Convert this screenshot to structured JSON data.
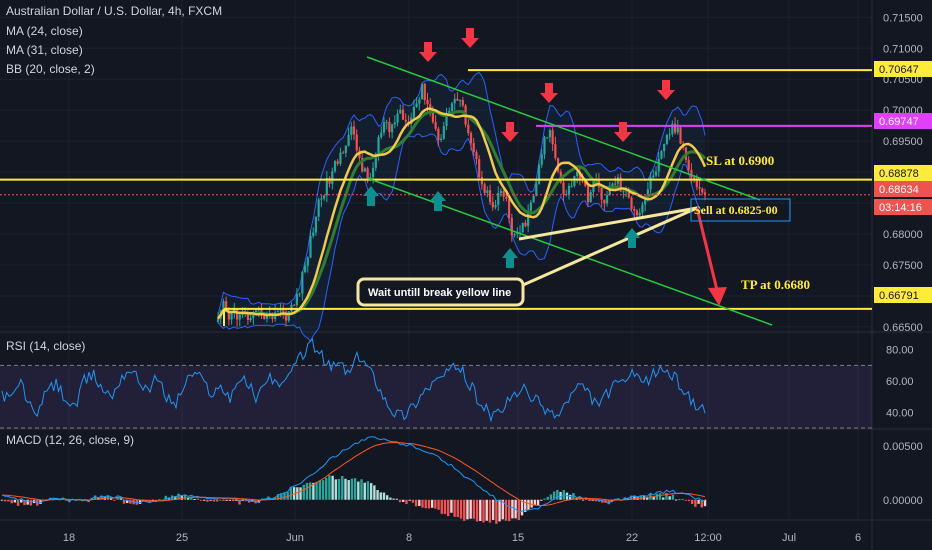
{
  "header": {
    "title": "Australian Dollar / U.S. Dollar, 4h, FXCM",
    "indicators": [
      "MA (24, close)",
      "MA (31, close)",
      "BB (20, close, 2)"
    ]
  },
  "panes": {
    "rsi_label": "RSI (14, close)",
    "macd_label": "MACD (12, 26, close, 9)"
  },
  "colors": {
    "background": "#131722",
    "up_candle": "#26a69a",
    "down_candle": "#ef5350",
    "ma24": "#f2c94c",
    "ma31": "#2e7d32",
    "bollinger": "#2962ff",
    "trend_lines": "#26c940",
    "level_lines": "#ffeb3b",
    "stop_line": "#e040fb",
    "arrow_down": "#f23645",
    "arrow_up": "#0e8f8f",
    "rsi_line": "#2196f3",
    "macd_line": "#2196f3",
    "signal_line": "#ff5722"
  },
  "annotations": {
    "sl": "SL at 0.6900",
    "sell": "Sell at 0.6825-00",
    "tp": "TP at 0.6680",
    "note": "Wait untill break yellow line"
  },
  "price_tags": {
    "t1": "0.70647",
    "t2": "0.69747",
    "t3": "0.68878",
    "t4": "0.68634",
    "countdown": "03:14:16",
    "t5": "0.66791"
  },
  "chart_data": [
    {
      "type": "candlestick",
      "title": "Australian Dollar / U.S. Dollar, 4h, FXCM",
      "x": [
        "18",
        "25",
        "Jun",
        "8",
        "15",
        "22",
        "12:00",
        "Jul",
        "6"
      ],
      "ylim": [
        0.6645,
        0.7165
      ],
      "y_ticks": [
        "0.71500",
        "0.71000",
        "0.70500",
        "0.70000",
        "0.69500",
        "0.69000",
        "0.68500",
        "0.68000",
        "0.67500",
        "0.67000",
        "0.66500"
      ],
      "levels": [
        {
          "label": "0.70647",
          "value": 0.70647
        },
        {
          "label": "0.69747",
          "value": 0.69747
        },
        {
          "label": "0.68878",
          "value": 0.68878
        },
        {
          "label": "0.68634",
          "value": 0.68634
        },
        {
          "label": "0.66791",
          "value": 0.66791
        }
      ],
      "series": [
        {
          "name": "MA (24, close)"
        },
        {
          "name": "MA (31, close)"
        },
        {
          "name": "BB (20, close, 2)"
        }
      ],
      "price_path": [
        [
          0.6655,
          0.6682,
          0.666,
          0.6678,
          0.6664,
          0.667,
          0.6658,
          0.6667,
          0.6676,
          0.6662,
          0.6672,
          0.6681,
          0.6668,
          0.6676,
          0.669,
          0.672,
          0.676,
          0.68,
          0.6845,
          0.687,
          0.6885,
          0.6905,
          0.6925,
          0.695,
          0.697,
          0.694,
          0.691,
          0.6885,
          0.6905,
          0.695,
          0.6975,
          0.6965,
          0.6985,
          0.7,
          0.698,
          0.7,
          0.7015,
          0.7035,
          0.701,
          0.6975,
          0.6955,
          0.698,
          0.701,
          0.702,
          0.7005,
          0.698,
          0.694,
          0.6905,
          0.688,
          0.6855,
          0.6835,
          0.687,
          0.6855,
          0.6805,
          0.679,
          0.681,
          0.683,
          0.686,
          0.6905,
          0.695,
          0.6965,
          0.693,
          0.688,
          0.686,
          0.689,
          0.6905,
          0.6875,
          0.686,
          0.6885,
          0.687,
          0.685,
          0.6875,
          0.689,
          0.687,
          0.686,
          0.6845,
          0.6835,
          0.6855,
          0.688,
          0.6905,
          0.692,
          0.695,
          0.6975,
          0.6965,
          0.694,
          0.6915,
          0.6885,
          0.6875,
          0.6862
        ]
      ]
    },
    {
      "type": "line",
      "title": "RSI (14, close)",
      "ylim": [
        30,
        90
      ],
      "y_ticks": [
        "80.00",
        "60.00",
        "40.00"
      ],
      "bands": [
        70,
        30
      ]
    },
    {
      "type": "bar",
      "title": "MACD (12, 26, close, 9)",
      "ylim": [
        -0.0017,
        0.0065
      ],
      "y_ticks": [
        "0.00500",
        "0.00000"
      ],
      "series": [
        {
          "name": "MACD"
        },
        {
          "name": "Signal"
        },
        {
          "name": "Histogram"
        }
      ]
    }
  ]
}
